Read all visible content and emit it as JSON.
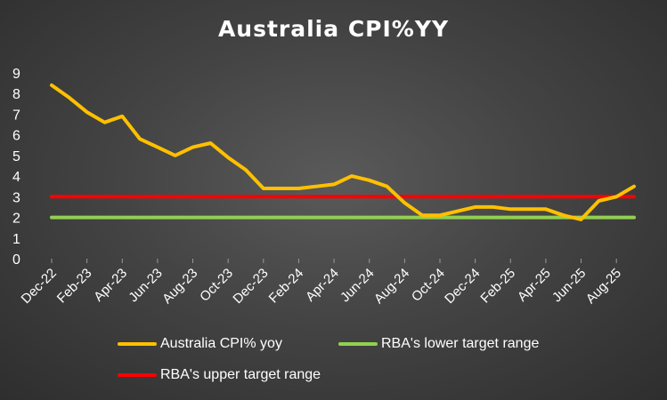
{
  "chart_data": {
    "type": "line",
    "title": "Australia CPI%YY",
    "xlabel": "",
    "ylabel": "",
    "ylim": [
      0,
      9
    ],
    "yticks": [
      "0",
      "1",
      "2",
      "3",
      "4",
      "5",
      "6",
      "7",
      "8",
      "9"
    ],
    "x": [
      "Dec-22",
      "Jan-23",
      "Feb-23",
      "Mar-23",
      "Apr-23",
      "May-23",
      "Jun-23",
      "Jul-23",
      "Aug-23",
      "Sep-23",
      "Oct-23",
      "Nov-23",
      "Dec-23",
      "Jan-24",
      "Feb-24",
      "Mar-24",
      "Apr-24",
      "May-24",
      "Jun-24",
      "Jul-24",
      "Aug-24",
      "Sep-24",
      "Oct-24",
      "Nov-24",
      "Dec-24",
      "Jan-25",
      "Feb-25",
      "Mar-25",
      "Apr-25",
      "May-25",
      "Jun-25",
      "Jul-25",
      "Aug-25",
      "Sep-25"
    ],
    "xtick_labels": [
      "Dec-22",
      "Feb-23",
      "Apr-23",
      "Jun-23",
      "Aug-23",
      "Oct-23",
      "Dec-23",
      "Feb-24",
      "Apr-24",
      "Jun-24",
      "Aug-24",
      "Oct-24",
      "Dec-24",
      "Feb-25",
      "Apr-25",
      "Jun-25",
      "Aug-25"
    ],
    "grid": false,
    "legend_position": "bottom",
    "series": [
      {
        "name": "Australia CPI% yoy",
        "color": "#FFC000",
        "values": [
          8.4,
          7.8,
          7.1,
          6.6,
          6.9,
          5.8,
          5.4,
          5.0,
          5.4,
          5.6,
          4.9,
          4.3,
          3.4,
          3.4,
          3.4,
          3.5,
          3.6,
          4.0,
          3.8,
          3.5,
          2.7,
          2.1,
          2.1,
          2.3,
          2.5,
          2.5,
          2.4,
          2.4,
          2.4,
          2.1,
          1.9,
          2.8,
          3.0,
          3.5
        ]
      },
      {
        "name": "RBA's lower target range",
        "color": "#92D050",
        "values": [
          2,
          2,
          2,
          2,
          2,
          2,
          2,
          2,
          2,
          2,
          2,
          2,
          2,
          2,
          2,
          2,
          2,
          2,
          2,
          2,
          2,
          2,
          2,
          2,
          2,
          2,
          2,
          2,
          2,
          2,
          2,
          2,
          2,
          2
        ]
      },
      {
        "name": "RBA's upper target range",
        "color": "#FF0000",
        "values": [
          3,
          3,
          3,
          3,
          3,
          3,
          3,
          3,
          3,
          3,
          3,
          3,
          3,
          3,
          3,
          3,
          3,
          3,
          3,
          3,
          3,
          3,
          3,
          3,
          3,
          3,
          3,
          3,
          3,
          3,
          3,
          3,
          3,
          3
        ]
      }
    ]
  },
  "legend": {
    "cpi": "Australia CPI% yoy",
    "lower": "RBA's lower target range",
    "upper": "RBA's upper target range"
  }
}
